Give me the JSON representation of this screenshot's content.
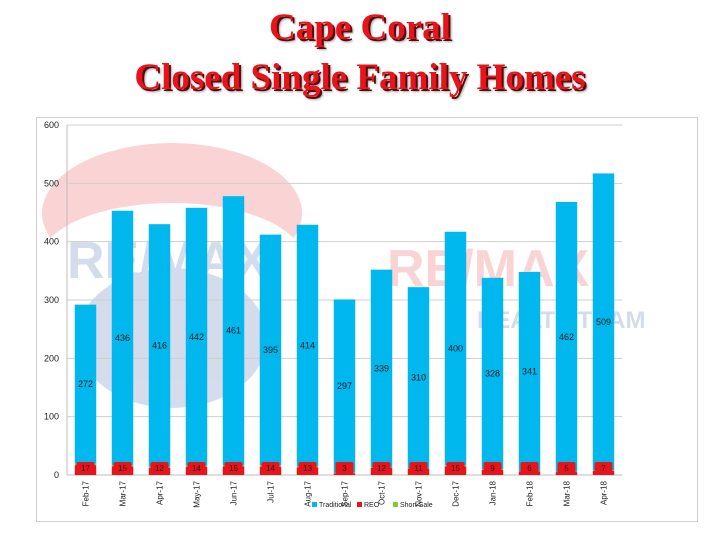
{
  "title": {
    "line1": "Cape Coral",
    "line2": "Closed Single Family Homes"
  },
  "colors": {
    "traditional": "#00b7ee",
    "reo": "#e8141b",
    "short_sale": "#7ccd3c",
    "title": "#e8141b"
  },
  "chart_data": {
    "type": "bar",
    "stacked": true,
    "categories": [
      "Feb-17",
      "Mar-17",
      "Apr-17",
      "May-17",
      "Jun-17",
      "Jul-17",
      "Aug-17",
      "Sep-17",
      "Oct-17",
      "Nov-17",
      "Dec-17",
      "Jan-18",
      "Feb-18",
      "Mar-18",
      "Apr-18"
    ],
    "series": [
      {
        "name": "Traditional",
        "values": [
          272,
          436,
          416,
          442,
          461,
          395,
          414,
          297,
          339,
          310,
          400,
          328,
          341,
          462,
          509
        ]
      },
      {
        "name": "REO",
        "values": [
          17,
          15,
          12,
          14,
          15,
          14,
          13,
          3,
          12,
          11,
          15,
          9,
          6,
          5,
          7
        ]
      },
      {
        "name": "Short Sale",
        "values": [
          3,
          2,
          2,
          2,
          2,
          3,
          2,
          1,
          1,
          1,
          2,
          1,
          1,
          1,
          1
        ]
      }
    ],
    "ylim": [
      0,
      600
    ],
    "yticks": [
      0,
      100,
      200,
      300,
      400,
      500,
      600
    ],
    "grid": true,
    "legend": "bottom"
  }
}
